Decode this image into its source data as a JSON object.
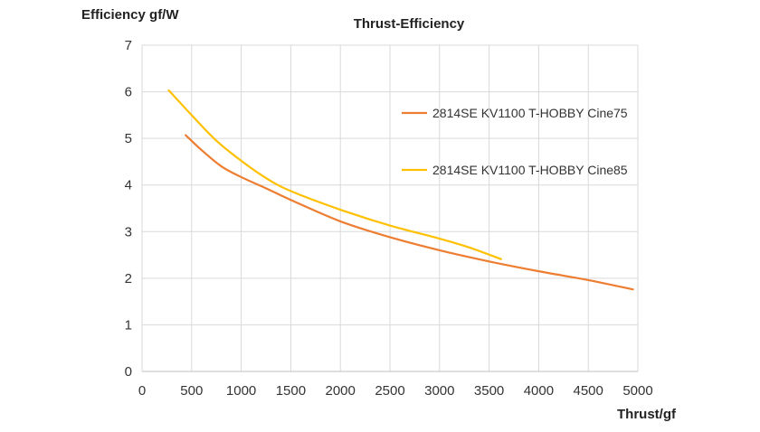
{
  "chart_data": {
    "type": "line",
    "title": "Thrust-Efficiency",
    "xlabel": "Thrust/gf",
    "ylabel": "Efficiency gf/W",
    "xlim": [
      0,
      5000
    ],
    "ylim": [
      0,
      7
    ],
    "xticks": [
      0,
      500,
      1000,
      1500,
      2000,
      2500,
      3000,
      3500,
      4000,
      4500,
      5000
    ],
    "yticks": [
      0,
      1,
      2,
      3,
      4,
      5,
      6,
      7
    ],
    "grid": true,
    "legend_position": "right",
    "series": [
      {
        "name": "2814SE KV1100 T-HOBBY Cine75",
        "color": "#ED7D31",
        "x": [
          440,
          600,
          800,
          1000,
          1250,
          1500,
          2000,
          2500,
          3000,
          3500,
          4000,
          4500,
          4950
        ],
        "y": [
          5.07,
          4.75,
          4.4,
          4.17,
          3.93,
          3.68,
          3.22,
          2.88,
          2.6,
          2.36,
          2.15,
          1.96,
          1.76
        ]
      },
      {
        "name": "2814SE KV1100 T-HOBBY Cine85",
        "color": "#FFC000",
        "x": [
          270,
          500,
          750,
          1000,
          1250,
          1500,
          2000,
          2500,
          3000,
          3300,
          3620
        ],
        "y": [
          6.03,
          5.5,
          4.95,
          4.52,
          4.15,
          3.87,
          3.47,
          3.13,
          2.85,
          2.66,
          2.41
        ]
      }
    ]
  }
}
